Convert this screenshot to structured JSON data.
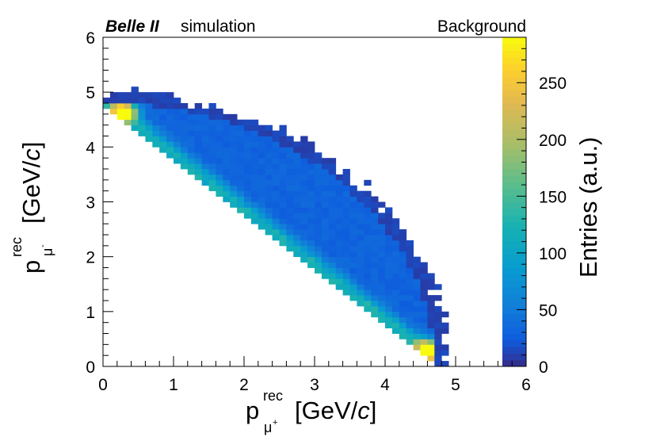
{
  "chart_data": {
    "type": "heatmap",
    "header_left_bold": "Belle II",
    "header_left": "simulation",
    "header_right": "Background",
    "x_axis": {
      "label_base": "p",
      "label_sup": "rec",
      "label_sub": "μ",
      "label_sub_sup": "+",
      "label_unit_open": "[GeV/",
      "label_unit_italic": "c",
      "label_unit_close": "]",
      "range": [
        0,
        6
      ],
      "ticks": [
        0,
        1,
        2,
        3,
        4,
        5,
        6
      ],
      "tick_labels": [
        "0",
        "1",
        "2",
        "3",
        "4",
        "5",
        "6"
      ]
    },
    "y_axis": {
      "label_base": "p",
      "label_sup": "rec",
      "label_sub": "μ",
      "label_sub_sup": "-",
      "label_unit_open": "[GeV/",
      "label_unit_italic": "c",
      "label_unit_close": "]",
      "range": [
        0,
        6
      ],
      "ticks": [
        0,
        1,
        2,
        3,
        4,
        5,
        6
      ],
      "tick_labels": [
        "0",
        "1",
        "2",
        "3",
        "4",
        "5",
        "6"
      ]
    },
    "colorbar": {
      "label": "Entries (a.u.)",
      "range": [
        0,
        290
      ],
      "ticks": [
        0,
        50,
        100,
        150,
        200,
        250
      ],
      "tick_labels": [
        "0",
        "50",
        "100",
        "150",
        "200",
        "250"
      ]
    },
    "bins": {
      "nx": 60,
      "ny": 60
    },
    "distribution": {
      "description_of_band_endpoints_in_GeV": [
        [
          0.1,
          4.75
        ],
        [
          4.7,
          0.15
        ]
      ],
      "high_density_peaks": [
        {
          "x": 0.3,
          "y": 4.65,
          "entries": 270
        },
        {
          "x": 4.6,
          "y": 0.3,
          "entries": 280
        }
      ],
      "diagonal_band_typical_entries": 90,
      "interior_typical_entries": 30,
      "edge_typical_entries": 8
    }
  }
}
